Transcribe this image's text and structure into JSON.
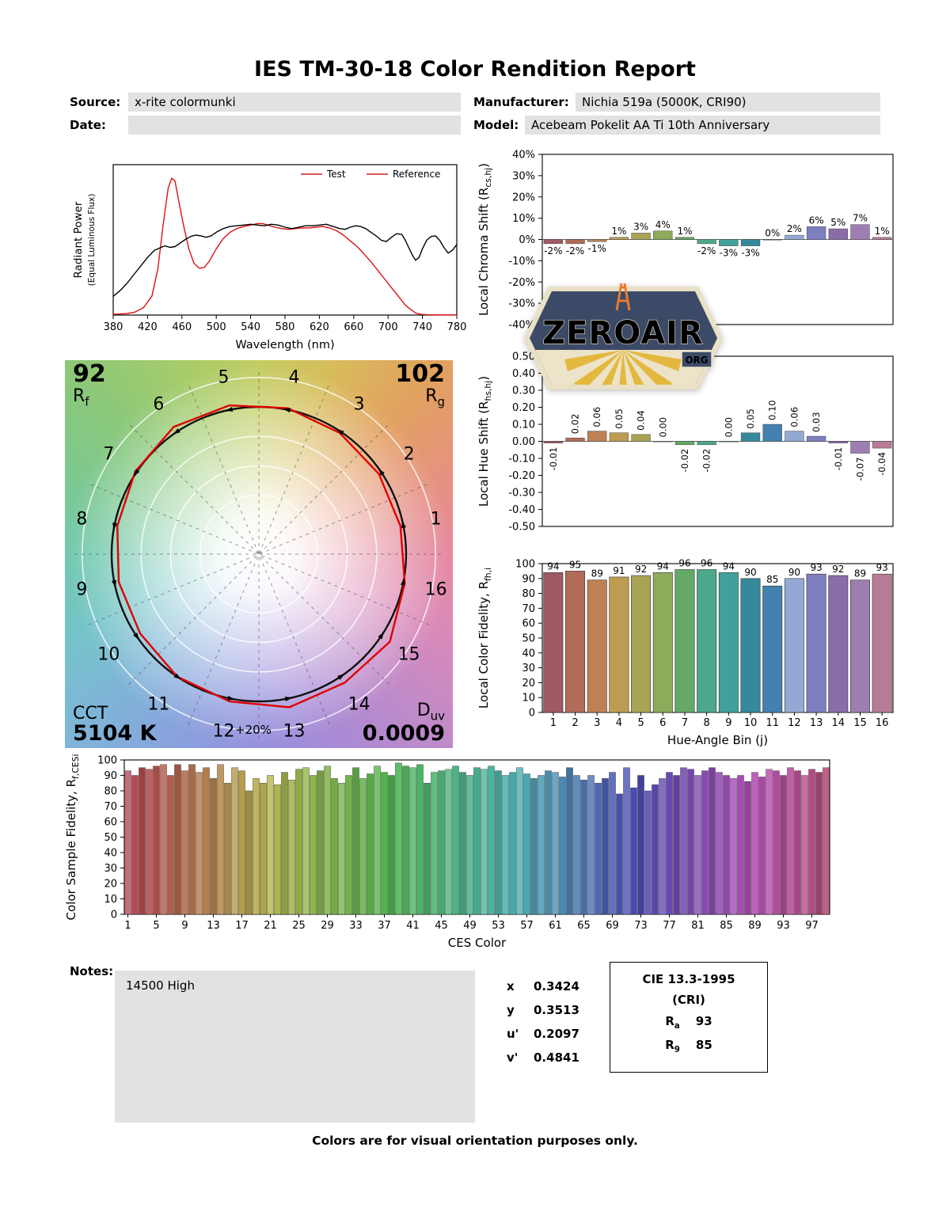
{
  "title": "IES TM-30-18 Color Rendition Report",
  "header": {
    "source_label": "Source:",
    "source_value": "x-rite colormunki",
    "manufacturer_label": "Manufacturer:",
    "manufacturer_value": "Nichia 519a (5000K, CRI90)",
    "date_label": "Date:",
    "date_value": "",
    "model_label": "Model:",
    "model_value": "Acebeam Pokelit AA Ti 10th Anniversary"
  },
  "watermark": {
    "text": "ZEROAIR",
    "suffix": "ORG"
  },
  "cvg": {
    "rf_value": "92",
    "rf_base": "R",
    "rf_sub": "f",
    "rg_value": "102",
    "rg_base": "R",
    "rg_sub": "g",
    "cct_label": "CCT",
    "cct_value": "5104 K",
    "duv_base": "D",
    "duv_sub": "uv",
    "duv_value": "0.0009",
    "ring_label": "+20%",
    "bin_labels": [
      "1",
      "2",
      "3",
      "4",
      "5",
      "6",
      "7",
      "8",
      "9",
      "10",
      "11",
      "12",
      "13",
      "14",
      "15",
      "16"
    ],
    "test_radii": [
      0.98,
      0.98,
      0.99,
      1.01,
      1.03,
      1.04,
      1.01,
      0.98,
      0.97,
      0.97,
      1.0,
      1.02,
      1.06,
      1.05,
      1.07,
      1.01
    ]
  },
  "hue_bin_colors": [
    "#a05a64",
    "#b26b59",
    "#bd8153",
    "#bd9c52",
    "#a9a455",
    "#8dab5b",
    "#64a968",
    "#4da88b",
    "#41a09c",
    "#35899b",
    "#4381ae",
    "#93a9d4",
    "#7d7fc0",
    "#8b6cab",
    "#9c7fb0",
    "#b87b97"
  ],
  "ces_color_ramp": {
    "hue_start": -10,
    "hue_end": 335,
    "saturation": 42,
    "lightness_cycle": [
      60,
      50,
      43,
      56,
      47
    ]
  },
  "notes": {
    "label": "Notes:",
    "value": "14500 High"
  },
  "chromaticity": {
    "rows": [
      {
        "label": "x",
        "value": "0.3424"
      },
      {
        "label": "y",
        "value": "0.3513"
      },
      {
        "label": "u'",
        "value": "0.2097"
      },
      {
        "label": "v'",
        "value": "0.4841"
      }
    ]
  },
  "cri_box": {
    "title": "CIE 13.3-1995",
    "subtitle": "(CRI)",
    "ra_base": "R",
    "ra_sub": "a",
    "ra_value": "93",
    "r9_base": "R",
    "r9_sub": "9",
    "r9_value": "85"
  },
  "footer": "Colors are for visual orientation purposes only.",
  "chart_data": [
    {
      "id": "spd",
      "type": "line",
      "xlabel": "Wavelength (nm)",
      "ylabel_line1": "Radiant Power",
      "ylabel_line2": "(Equal Luminous Flux)",
      "xlim": [
        380,
        780
      ],
      "xticks": [
        380,
        420,
        460,
        500,
        540,
        580,
        620,
        660,
        700,
        740,
        780
      ],
      "legend": [
        {
          "name": "Test",
          "line_color": "#cc2222",
          "text_color": "#cc2222"
        },
        {
          "name": "Reference",
          "line_color": "#cc2222",
          "text_color": "#000000"
        }
      ],
      "series": [
        {
          "name": "Test",
          "color": "#dd1111",
          "x": [
            380,
            395,
            405,
            415,
            425,
            432,
            438,
            444,
            448,
            452,
            456,
            462,
            468,
            474,
            480,
            486,
            492,
            500,
            508,
            516,
            524,
            532,
            540,
            548,
            554,
            560,
            568,
            576,
            584,
            592,
            600,
            608,
            616,
            624,
            632,
            640,
            648,
            656,
            664,
            672,
            680,
            688,
            696,
            704,
            712,
            720,
            726,
            732,
            738,
            745,
            760,
            780
          ],
          "y": [
            0.005,
            0.01,
            0.02,
            0.05,
            0.13,
            0.32,
            0.62,
            0.88,
            0.95,
            0.93,
            0.8,
            0.62,
            0.46,
            0.36,
            0.325,
            0.33,
            0.375,
            0.46,
            0.53,
            0.575,
            0.6,
            0.615,
            0.625,
            0.635,
            0.635,
            0.625,
            0.61,
            0.6,
            0.595,
            0.6,
            0.605,
            0.605,
            0.61,
            0.615,
            0.605,
            0.585,
            0.555,
            0.515,
            0.475,
            0.425,
            0.37,
            0.31,
            0.25,
            0.19,
            0.13,
            0.07,
            0.04,
            0.015,
            0.005,
            0.002,
            0.001,
            0.001
          ]
        },
        {
          "name": "Reference",
          "color": "#000000",
          "x": [
            380,
            388,
            396,
            404,
            412,
            420,
            428,
            434,
            440,
            446,
            452,
            458,
            464,
            470,
            476,
            482,
            488,
            494,
            500,
            508,
            516,
            524,
            532,
            540,
            548,
            556,
            564,
            572,
            580,
            588,
            596,
            604,
            612,
            620,
            628,
            636,
            644,
            650,
            656,
            662,
            668,
            674,
            680,
            686,
            692,
            698,
            704,
            710,
            716,
            720,
            724,
            728,
            732,
            736,
            740,
            745,
            750,
            755,
            760,
            765,
            770,
            775,
            780
          ],
          "y": [
            0.13,
            0.17,
            0.22,
            0.28,
            0.34,
            0.4,
            0.45,
            0.465,
            0.48,
            0.47,
            0.475,
            0.5,
            0.525,
            0.545,
            0.555,
            0.55,
            0.54,
            0.55,
            0.575,
            0.6,
            0.615,
            0.62,
            0.625,
            0.63,
            0.625,
            0.62,
            0.63,
            0.625,
            0.61,
            0.6,
            0.61,
            0.62,
            0.62,
            0.625,
            0.63,
            0.615,
            0.6,
            0.595,
            0.61,
            0.62,
            0.615,
            0.6,
            0.575,
            0.55,
            0.52,
            0.51,
            0.54,
            0.565,
            0.56,
            0.52,
            0.47,
            0.42,
            0.38,
            0.4,
            0.46,
            0.52,
            0.545,
            0.55,
            0.52,
            0.47,
            0.43,
            0.45,
            0.49
          ]
        }
      ]
    },
    {
      "id": "chroma_shift",
      "type": "bar",
      "ylabel": "Local Chroma Shift (R",
      "ylabel_sub": "cs,hj",
      "ylabel_close": ")",
      "categories": [
        1,
        2,
        3,
        4,
        5,
        6,
        7,
        8,
        9,
        10,
        11,
        12,
        13,
        14,
        15,
        16
      ],
      "values": [
        -2,
        -2,
        -1,
        1,
        3,
        4,
        1,
        -2,
        -3,
        -3,
        0,
        2,
        6,
        5,
        7,
        1
      ],
      "labels": [
        "-2%",
        "-2%",
        "-1%",
        "1%",
        "3%",
        "4%",
        "1%",
        "-2%",
        "-3%",
        "-3%",
        "0%",
        "2%",
        "6%",
        "5%",
        "7%",
        "1%"
      ],
      "ylim": [
        -40,
        40
      ],
      "yticks": [
        40,
        30,
        20,
        10,
        0,
        -10,
        -20,
        -30,
        -40
      ],
      "ytick_labels": [
        "40%",
        "30%",
        "20%",
        "10%",
        "0%",
        "-10%",
        "-20%",
        "-30%",
        "-40%"
      ],
      "label_rotate": false
    },
    {
      "id": "hue_shift",
      "type": "bar",
      "ylabel": "Local Hue Shift (R",
      "ylabel_sub": "hs,hj",
      "ylabel_close": ")",
      "categories": [
        1,
        2,
        3,
        4,
        5,
        6,
        7,
        8,
        9,
        10,
        11,
        12,
        13,
        14,
        15,
        16
      ],
      "values": [
        -0.01,
        0.02,
        0.06,
        0.05,
        0.04,
        0.0,
        -0.02,
        -0.02,
        0.0,
        0.05,
        0.1,
        0.06,
        0.03,
        -0.01,
        -0.07,
        -0.04
      ],
      "labels": [
        "-0.01",
        "0.02",
        "0.06",
        "0.05",
        "0.04",
        "0.00",
        "-0.02",
        "-0.02",
        "0.00",
        "0.05",
        "0.10",
        "0.06",
        "0.03",
        "-0.01",
        "-0.07",
        "-0.04"
      ],
      "ylim": [
        -0.5,
        0.5
      ],
      "yticks": [
        0.5,
        0.4,
        0.3,
        0.2,
        0.1,
        0,
        -0.1,
        -0.2,
        -0.3,
        -0.4,
        -0.5
      ],
      "ytick_labels": [
        "0.50",
        "0.40",
        "0.30",
        "0.20",
        "0.10",
        "0.00",
        "-0.10",
        "-0.20",
        "-0.30",
        "-0.40",
        "-0.50"
      ],
      "label_rotate": true
    },
    {
      "id": "local_fidelity",
      "type": "bar",
      "ylabel": "Local Color Fidelity, R",
      "ylabel_sub": "fh,i",
      "xlabel": "Hue-Angle Bin (j)",
      "categories": [
        "1",
        "2",
        "3",
        "4",
        "5",
        "6",
        "7",
        "8",
        "9",
        "10",
        "11",
        "12",
        "13",
        "14",
        "15",
        "16"
      ],
      "values": [
        94,
        95,
        89,
        91,
        92,
        94,
        96,
        96,
        94,
        90,
        85,
        90,
        93,
        92,
        89,
        93
      ],
      "ylim": [
        0,
        100
      ],
      "yticks": [
        100,
        90,
        80,
        70,
        60,
        50,
        40,
        30,
        20,
        10,
        0
      ]
    },
    {
      "id": "ces_fidelity",
      "type": "bar",
      "ylabel": "Color Sample Fidelity, R",
      "ylabel_sub": "f,CESi",
      "xlabel": "CES Color",
      "xtick_labels": [
        "1",
        "5",
        "9",
        "13",
        "17",
        "21",
        "25",
        "29",
        "33",
        "37",
        "41",
        "45",
        "49",
        "53",
        "57",
        "61",
        "65",
        "69",
        "73",
        "77",
        "81",
        "85",
        "89",
        "93",
        "97"
      ],
      "values": [
        93,
        90,
        95,
        94,
        96,
        97,
        90,
        97,
        93,
        97,
        92,
        95,
        88,
        97,
        85,
        95,
        93,
        80,
        88,
        85,
        90,
        84,
        92,
        87,
        94,
        95,
        90,
        93,
        96,
        88,
        85,
        90,
        95,
        88,
        91,
        96,
        92,
        90,
        98,
        96,
        95,
        97,
        85,
        92,
        93,
        94,
        96,
        92,
        90,
        95,
        94,
        96,
        93,
        90,
        92,
        95,
        91,
        88,
        90,
        93,
        92,
        89,
        95,
        90,
        87,
        90,
        85,
        88,
        92,
        78,
        95,
        82,
        90,
        80,
        84,
        88,
        92,
        90,
        95,
        94,
        90,
        93,
        95,
        92,
        90,
        88,
        90,
        86,
        92,
        89,
        94,
        93,
        90,
        95,
        93,
        90,
        94,
        92,
        95
      ],
      "ylim": [
        0,
        100
      ],
      "yticks": [
        100,
        90,
        80,
        70,
        60,
        50,
        40,
        30,
        20,
        10,
        0
      ]
    }
  ]
}
